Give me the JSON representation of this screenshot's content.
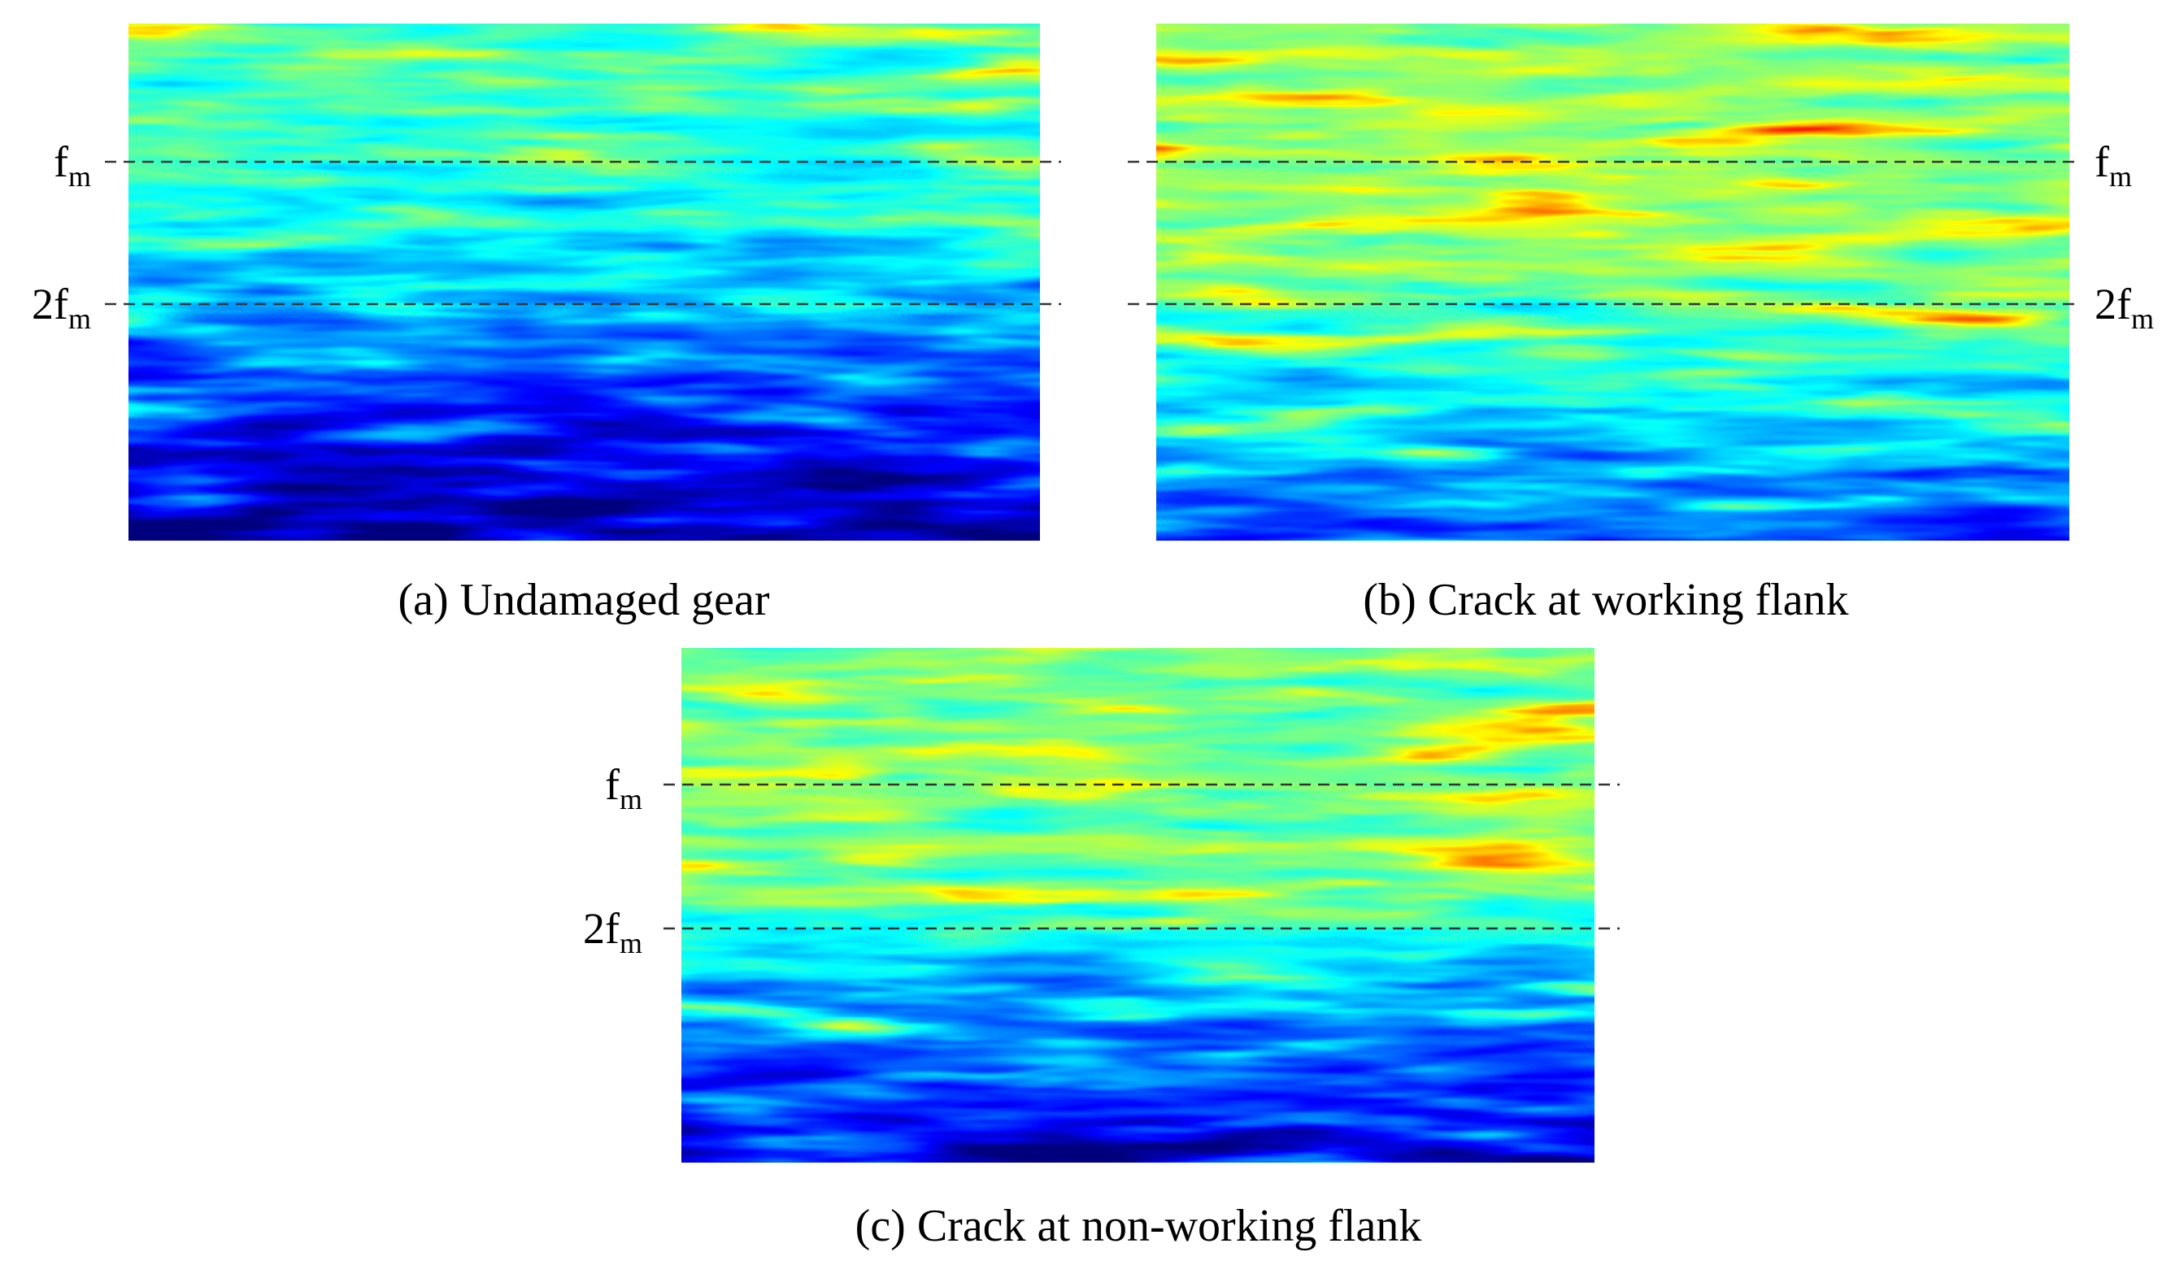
{
  "panels": [
    {
      "caption": "(a) Undamaged gear",
      "labels": [
        {
          "main": "f",
          "sub": "m"
        },
        {
          "main": "2f",
          "sub": "m"
        }
      ]
    },
    {
      "caption": "(b) Crack at working flank",
      "labels": [
        {
          "main": "f",
          "sub": "m"
        },
        {
          "main": "2f",
          "sub": "m"
        }
      ]
    },
    {
      "caption": "(c) Crack at non-working flank",
      "labels": [
        {
          "main": "f",
          "sub": "m"
        },
        {
          "main": "2f",
          "sub": "m"
        }
      ]
    }
  ]
}
